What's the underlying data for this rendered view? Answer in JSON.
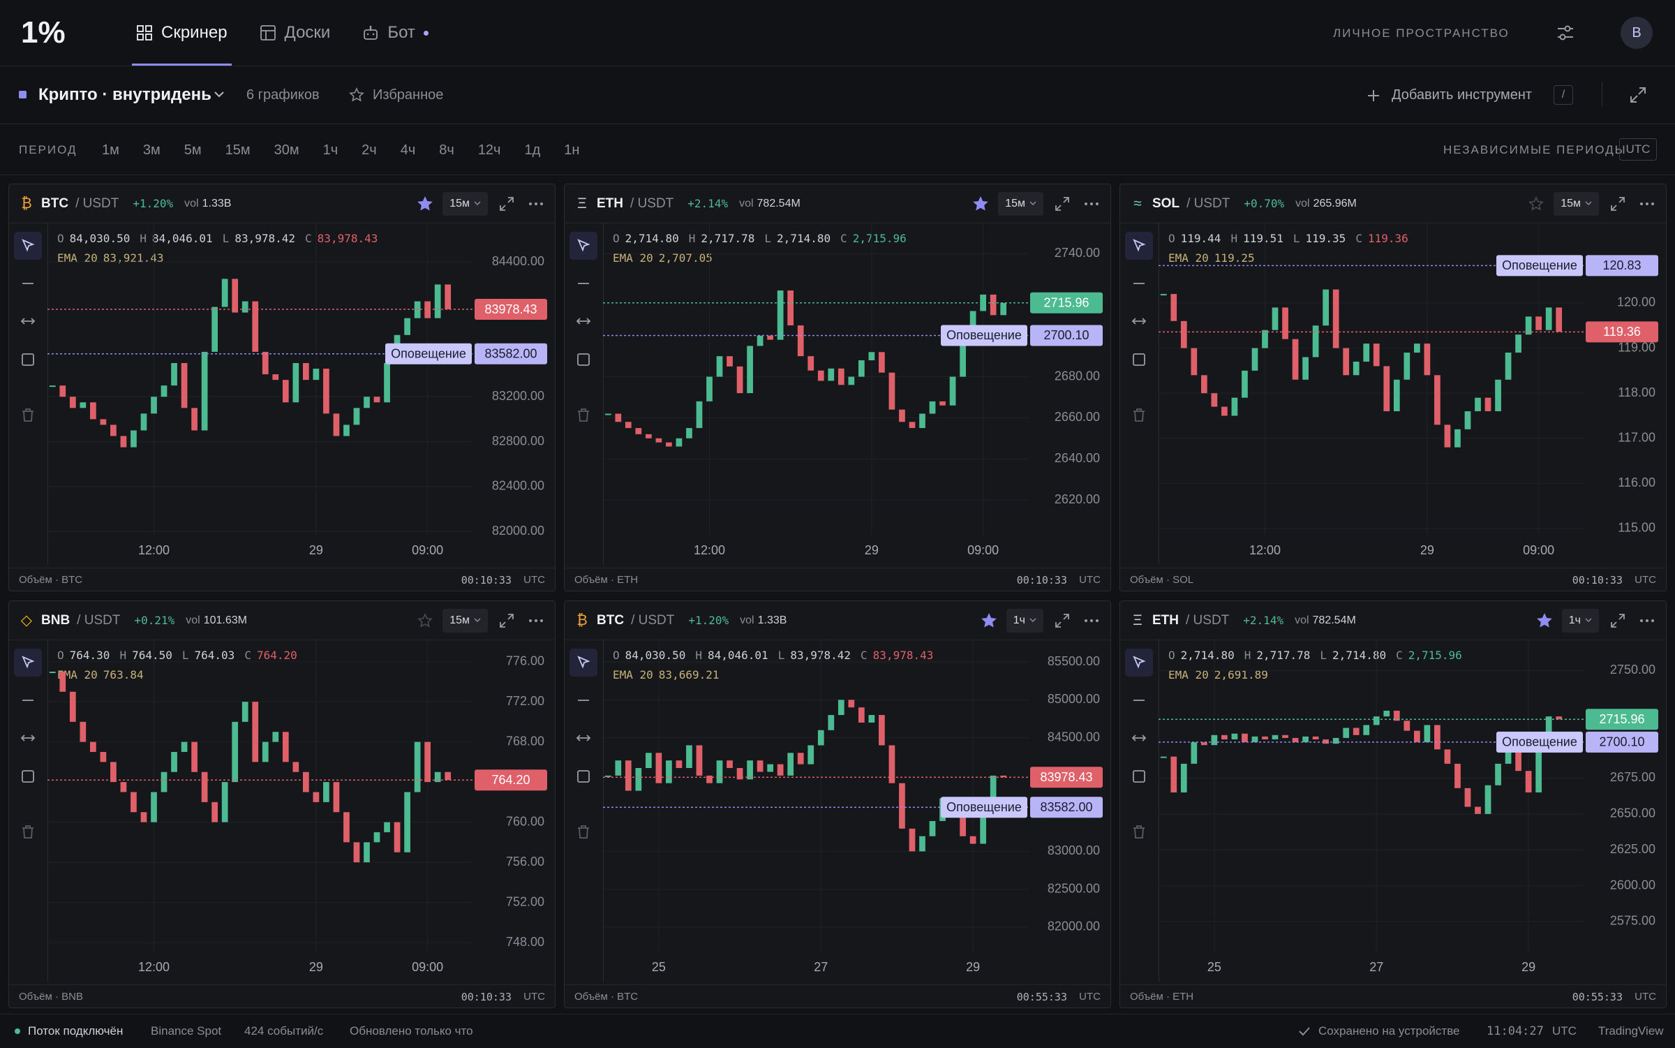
{
  "nav": {
    "logo": "1%",
    "tabs": [
      "Скринер",
      "Доски",
      "Бот"
    ],
    "workspace": "ЛИЧНОЕ ПРОСТРАНСТВО",
    "avatar": "B"
  },
  "toolbar": {
    "layout": "Крипто · внутридень",
    "count": "6 графиков",
    "favorites": "Избранное",
    "add": "Добавить инструмент",
    "shortcut": "/"
  },
  "periods": {
    "label": "ПЕРИОД",
    "items": [
      "1м",
      "3м",
      "5м",
      "15м",
      "30м",
      "1ч",
      "2ч",
      "4ч",
      "8ч",
      "12ч",
      "1д",
      "1н"
    ],
    "independent": "НЕЗАВИСИМЫЕ ПЕРИОДЫ",
    "tz": "UTC"
  },
  "chart_data": [
    {
      "type": "candlestick",
      "icon": "₿",
      "icon_color": "#f0a23a",
      "symbol": "BTC",
      "quote": "/ USDT",
      "change": "+1.20%",
      "vol_label": "vol",
      "volume": "1.33B",
      "interval": "15м",
      "starred": true,
      "ohlc": [
        "O",
        "84,030.50",
        "H",
        "84,046.01",
        "L",
        "83,978.42",
        "C",
        "83,978.43"
      ],
      "close_color": "#e0606a",
      "ema": [
        "EMA 20",
        "83,921.43"
      ],
      "categories": [
        null,
        null,
        null,
        null,
        null,
        null,
        null,
        null,
        null,
        null,
        "12:00",
        null,
        null,
        null,
        null,
        null,
        null,
        null,
        null,
        null,
        null,
        null,
        null,
        null,
        null,
        null,
        "29",
        null,
        null,
        null,
        null,
        null,
        null,
        null,
        null,
        null,
        null,
        "09:00",
        null,
        null
      ],
      "values": [
        83300,
        83200,
        83100,
        83150,
        83000,
        82950,
        82850,
        82750,
        82900,
        83050,
        83200,
        83300,
        83500,
        83100,
        82900,
        83600,
        84000,
        84250,
        83950,
        84050,
        83600,
        83400,
        83350,
        83150,
        83500,
        83350,
        83450,
        83050,
        82850,
        82950,
        83100,
        83200,
        83150,
        83500,
        83750,
        83900,
        84050,
        83900,
        84200,
        83978.43
      ],
      "up_color": "#4dbb92",
      "down_color": "#e0606a",
      "ylim": [
        81970,
        84750
      ],
      "yticks": [
        {
          "value": 84400,
          "label": "84400.00"
        },
        {
          "value": 83200,
          "label": "83200.00"
        },
        {
          "value": 82800,
          "label": "82800.00"
        },
        {
          "value": 82400,
          "label": "82400.00"
        },
        {
          "value": 82000,
          "label": "82000.00"
        }
      ],
      "price_label": {
        "value": 83978.43,
        "label": "83978.43"
      },
      "alert": {
        "text": "Оповещение",
        "value": 83582,
        "label": "83582.00"
      },
      "footer": [
        "Объём · BTC",
        "00:10:33",
        "UTC"
      ]
    },
    {
      "type": "candlestick",
      "icon": "Ξ",
      "icon_color": "#c8c9d0",
      "symbol": "ETH",
      "quote": "/ USDT",
      "change": "+2.14%",
      "vol_label": "vol",
      "volume": "782.54M",
      "interval": "15м",
      "starred": true,
      "ohlc": [
        "O",
        "2,714.80",
        "H",
        "2,717.78",
        "L",
        "2,714.80",
        "C",
        "2,715.96"
      ],
      "close_color": "#4dbb92",
      "ema": [
        "EMA 20",
        "2,707.05"
      ],
      "categories": [
        null,
        null,
        null,
        null,
        null,
        null,
        null,
        null,
        null,
        null,
        "12:00",
        null,
        null,
        null,
        null,
        null,
        null,
        null,
        null,
        null,
        null,
        null,
        null,
        null,
        null,
        null,
        "29",
        null,
        null,
        null,
        null,
        null,
        null,
        null,
        null,
        null,
        null,
        "09:00",
        null,
        null
      ],
      "values": [
        2662,
        2658,
        2655,
        2652,
        2650,
        2648,
        2646,
        2650,
        2655,
        2668,
        2680,
        2690,
        2685,
        2672,
        2695,
        2700,
        2698,
        2722,
        2705,
        2690,
        2683,
        2678,
        2684,
        2676,
        2680,
        2688,
        2692,
        2682,
        2664,
        2658,
        2655,
        2662,
        2668,
        2666,
        2680,
        2700,
        2712,
        2720,
        2710,
        2715.96
      ],
      "up_color": "#4dbb92",
      "down_color": "#e0606a",
      "ylim": [
        2603,
        2755
      ],
      "yticks": [
        {
          "value": 2740,
          "label": "2740.00"
        },
        {
          "value": 2680,
          "label": "2680.00"
        },
        {
          "value": 2660,
          "label": "2660.00"
        },
        {
          "value": 2640,
          "label": "2640.00"
        },
        {
          "value": 2620,
          "label": "2620.00"
        }
      ],
      "price_label": {
        "value": 2715.96,
        "label": "2715.96"
      },
      "alert": {
        "text": "Оповещение",
        "value": 2700.1,
        "label": "2700.10"
      },
      "footer": [
        "Объём · ETH",
        "00:10:33",
        "UTC"
      ]
    },
    {
      "type": "candlestick",
      "icon": "≈",
      "icon_color": "#6fd0c0",
      "symbol": "SOL",
      "quote": "/ USDT",
      "change": "+0.70%",
      "vol_label": "vol",
      "volume": "265.96M",
      "interval": "15м",
      "starred": false,
      "ohlc": [
        "O",
        "119.44",
        "H",
        "119.51",
        "L",
        "119.35",
        "C",
        "119.36"
      ],
      "close_color": "#e0606a",
      "ema": [
        "EMA 20",
        "119.25"
      ],
      "categories": [
        null,
        null,
        null,
        null,
        null,
        null,
        null,
        null,
        null,
        null,
        "12:00",
        null,
        null,
        null,
        null,
        null,
        null,
        null,
        null,
        null,
        null,
        null,
        null,
        null,
        null,
        null,
        "29",
        null,
        null,
        null,
        null,
        null,
        null,
        null,
        null,
        null,
        null,
        "09:00",
        null,
        null
      ],
      "values": [
        120.2,
        119.6,
        119.0,
        118.4,
        118.0,
        117.7,
        117.5,
        117.9,
        118.5,
        119.0,
        119.4,
        119.9,
        119.2,
        118.3,
        118.8,
        119.5,
        120.3,
        119.0,
        118.4,
        118.7,
        119.1,
        118.6,
        117.6,
        118.3,
        118.9,
        119.1,
        118.4,
        117.3,
        116.8,
        117.2,
        117.6,
        117.9,
        117.6,
        118.3,
        118.9,
        119.3,
        119.7,
        119.4,
        119.9,
        119.36
      ],
      "up_color": "#4dbb92",
      "down_color": "#e0606a",
      "ylim": [
        114.86,
        121.78
      ],
      "yticks": [
        {
          "value": 120,
          "label": "120.00"
        },
        {
          "value": 119,
          "label": "119.00"
        },
        {
          "value": 118,
          "label": "118.00"
        },
        {
          "value": 117,
          "label": "117.00"
        },
        {
          "value": 116,
          "label": "116.00"
        },
        {
          "value": 115,
          "label": "115.00"
        }
      ],
      "price_label": {
        "value": 119.36,
        "label": "119.36"
      },
      "alert": {
        "text": "Оповещение",
        "value": 120.83,
        "label": "120.83"
      },
      "footer": [
        "Объём · SOL",
        "00:10:33",
        "UTC"
      ]
    },
    {
      "type": "candlestick",
      "icon": "◇",
      "icon_color": "#f0b90b",
      "symbol": "BNB",
      "quote": "/ USDT",
      "change": "+0.21%",
      "vol_label": "vol",
      "volume": "101.63M",
      "interval": "15м",
      "starred": false,
      "ohlc": [
        "O",
        "764.30",
        "H",
        "764.50",
        "L",
        "764.03",
        "C",
        "764.20"
      ],
      "close_color": "#e0606a",
      "ema": [
        "EMA 20",
        "763.84"
      ],
      "categories": [
        null,
        null,
        null,
        null,
        null,
        null,
        null,
        null,
        null,
        null,
        "12:00",
        null,
        null,
        null,
        null,
        null,
        null,
        null,
        null,
        null,
        null,
        null,
        null,
        null,
        null,
        null,
        "29",
        null,
        null,
        null,
        null,
        null,
        null,
        null,
        null,
        null,
        null,
        "09:00",
        null,
        null
      ],
      "values": [
        775,
        773,
        770,
        768,
        767,
        766,
        764,
        763,
        761,
        760,
        763,
        765,
        767,
        768,
        765,
        762,
        760,
        764,
        770,
        772,
        766,
        768,
        769,
        766,
        765,
        763,
        762,
        764,
        761,
        758,
        756,
        758,
        759,
        760,
        757,
        763,
        768,
        764,
        765,
        764.2
      ],
      "up_color": "#4dbb92",
      "down_color": "#e0606a",
      "ylim": [
        747.1,
        778.2
      ],
      "yticks": [
        {
          "value": 776,
          "label": "776.00"
        },
        {
          "value": 772,
          "label": "772.00"
        },
        {
          "value": 768,
          "label": "768.00"
        },
        {
          "value": 760,
          "label": "760.00"
        },
        {
          "value": 756,
          "label": "756.00"
        },
        {
          "value": 752,
          "label": "752.00"
        },
        {
          "value": 748,
          "label": "748.00"
        }
      ],
      "price_label": {
        "value": 764.2,
        "label": "764.20"
      },
      "footer": [
        "Объём · BNB",
        "00:10:33",
        "UTC"
      ]
    },
    {
      "type": "candlestick",
      "icon": "₿",
      "icon_color": "#f0a23a",
      "symbol": "BTC",
      "quote": "/ USDT",
      "change": "+1.20%",
      "vol_label": "vol",
      "volume": "1.33B",
      "interval": "1ч",
      "starred": true,
      "ohlc": [
        "O",
        "84,030.50",
        "H",
        "84,046.01",
        "L",
        "83,978.42",
        "C",
        "83,978.43"
      ],
      "close_color": "#e0606a",
      "ema": [
        "EMA 20",
        "83,669.21"
      ],
      "categories": [
        null,
        null,
        null,
        null,
        null,
        "25",
        null,
        null,
        null,
        null,
        null,
        null,
        null,
        null,
        null,
        null,
        null,
        null,
        null,
        null,
        null,
        "27",
        null,
        null,
        null,
        null,
        null,
        null,
        null,
        null,
        null,
        null,
        null,
        null,
        null,
        null,
        "29",
        null,
        null,
        null
      ],
      "values": [
        84000,
        84200,
        83800,
        84100,
        84300,
        83900,
        84200,
        84100,
        84400,
        84000,
        83900,
        84200,
        84100,
        83950,
        84200,
        84050,
        84150,
        84000,
        84300,
        84150,
        84400,
        84600,
        84800,
        85000,
        84900,
        84700,
        84800,
        84400,
        83900,
        83300,
        83000,
        83200,
        83400,
        83700,
        83500,
        83200,
        83100,
        83600,
        84000,
        83978.43
      ],
      "up_color": "#4dbb92",
      "down_color": "#e0606a",
      "ylim": [
        81676,
        85796
      ],
      "yticks": [
        {
          "value": 85500,
          "label": "85500.00"
        },
        {
          "value": 85000,
          "label": "85000.00"
        },
        {
          "value": 84500,
          "label": "84500.00"
        },
        {
          "value": 83000,
          "label": "83000.00"
        },
        {
          "value": 82500,
          "label": "82500.00"
        },
        {
          "value": 82000,
          "label": "82000.00"
        }
      ],
      "price_label": {
        "value": 83978.43,
        "label": "83978.43"
      },
      "alert": {
        "text": "Оповещение",
        "value": 83582,
        "label": "83582.00"
      },
      "footer": [
        "Объём · BTC",
        "00:55:33",
        "UTC"
      ]
    },
    {
      "type": "candlestick",
      "icon": "Ξ",
      "icon_color": "#c8c9d0",
      "symbol": "ETH",
      "quote": "/ USDT",
      "change": "+2.14%",
      "vol_label": "vol",
      "volume": "782.54M",
      "interval": "1ч",
      "starred": true,
      "ohlc": [
        "O",
        "2,714.80",
        "H",
        "2,717.78",
        "L",
        "2,714.80",
        "C",
        "2,715.96"
      ],
      "close_color": "#4dbb92",
      "ema": [
        "EMA 20",
        "2,691.89"
      ],
      "categories": [
        null,
        null,
        null,
        null,
        null,
        "25",
        null,
        null,
        null,
        null,
        null,
        null,
        null,
        null,
        null,
        null,
        null,
        null,
        null,
        null,
        null,
        "27",
        null,
        null,
        null,
        null,
        null,
        null,
        null,
        null,
        null,
        null,
        null,
        null,
        null,
        null,
        "29",
        null,
        null,
        null
      ],
      "values": [
        2690,
        2665,
        2685,
        2700,
        2698,
        2705,
        2702,
        2706,
        2700,
        2704,
        2702,
        2705,
        2703,
        2700,
        2704,
        2702,
        2699,
        2703,
        2710,
        2705,
        2712,
        2718,
        2722,
        2715,
        2708,
        2700,
        2712,
        2695,
        2685,
        2668,
        2655,
        2650,
        2670,
        2685,
        2700,
        2680,
        2665,
        2700,
        2718,
        2715.96
      ],
      "up_color": "#4dbb92",
      "down_color": "#e0606a",
      "ylim": [
        2554,
        2771.6
      ],
      "yticks": [
        {
          "value": 2750,
          "label": "2750.00"
        },
        {
          "value": 2675,
          "label": "2675.00"
        },
        {
          "value": 2650,
          "label": "2650.00"
        },
        {
          "value": 2625,
          "label": "2625.00"
        },
        {
          "value": 2600,
          "label": "2600.00"
        },
        {
          "value": 2575,
          "label": "2575.00"
        }
      ],
      "price_label": {
        "value": 2715.96,
        "label": "2715.96"
      },
      "alert": {
        "text": "Оповещение",
        "value": 2700.1,
        "label": "2700.10"
      },
      "footer": [
        "Объём · ETH",
        "00:55:33",
        "UTC"
      ]
    }
  ],
  "status": {
    "stream": "Поток подключён",
    "source": "Binance Spot",
    "rate": "424 событий/с",
    "updated": "Обновлено только что",
    "saved": "Сохранено на устройстве",
    "time": "11:04:27",
    "tz": "UTC",
    "brand": "TradingView"
  }
}
